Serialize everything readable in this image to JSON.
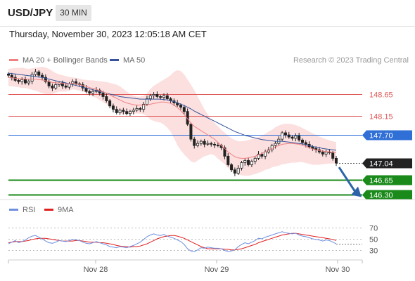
{
  "header": {
    "symbol": "USD/JPY",
    "timeframe": "30 MIN"
  },
  "datetime": "Thursday, November 30, 2023 12:05:18 AM CET",
  "legend": {
    "ma20": "MA 20 + Bollinger Bands",
    "ma50": "MA 50"
  },
  "copyright": "Research © 2023 Trading Central",
  "rsi_legend": {
    "rsi": "RSI",
    "ma9": "9MA"
  },
  "colors": {
    "ma20": "#f08080",
    "bollinger_fill": "#fbd4d4",
    "ma50": "#34539c",
    "support": "#1a8a1a",
    "pivot": "#2f6fd6",
    "resistance": "#e05858",
    "last": "#222222",
    "rsi": "#6f8fe0",
    "rsi_ma": "#e02020",
    "arrow": "#2d64a8"
  },
  "chart_data": [
    {
      "type": "candlestick",
      "pane": "price",
      "x_labels": [
        "Nov 28",
        "Nov 29",
        "Nov 30"
      ],
      "ylim": [
        146.2,
        149.3
      ],
      "levels": [
        {
          "value": 148.65,
          "label": "148.65",
          "kind": "resistance"
        },
        {
          "value": 148.15,
          "label": "148.15",
          "kind": "resistance"
        },
        {
          "value": 147.7,
          "label": "147.70",
          "kind": "pivot"
        },
        {
          "value": 147.04,
          "label": "147.04",
          "kind": "last"
        },
        {
          "value": 146.65,
          "label": "146.65",
          "kind": "support"
        },
        {
          "value": 146.3,
          "label": "146.30",
          "kind": "support"
        }
      ],
      "close": [
        149.1,
        149.05,
        148.98,
        148.95,
        149.0,
        148.92,
        148.96,
        149.12,
        149.18,
        149.1,
        149.05,
        148.95,
        148.85,
        148.8,
        148.88,
        148.92,
        148.85,
        148.82,
        148.9,
        148.95,
        148.9,
        148.88,
        148.8,
        148.72,
        148.68,
        148.72,
        148.75,
        148.68,
        148.6,
        148.5,
        148.38,
        148.3,
        148.22,
        148.28,
        148.25,
        148.2,
        148.25,
        148.28,
        148.32,
        148.3,
        148.42,
        148.55,
        148.62,
        148.65,
        148.6,
        148.58,
        148.62,
        148.55,
        148.5,
        148.45,
        148.4,
        148.35,
        148.25,
        147.95,
        147.6,
        147.45,
        147.5,
        147.55,
        147.48,
        147.5,
        147.48,
        147.46,
        147.45,
        147.4,
        147.2,
        147.0,
        146.88,
        146.8,
        146.92,
        147.05,
        147.1,
        147.0,
        147.08,
        147.15,
        147.25,
        147.2,
        147.3,
        147.35,
        147.45,
        147.5,
        147.6,
        147.75,
        147.7,
        147.65,
        147.62,
        147.68,
        147.58,
        147.52,
        147.48,
        147.42,
        147.38,
        147.35,
        147.3,
        147.25,
        147.3,
        147.28,
        147.15,
        147.04
      ],
      "ma20": [
        149.05,
        149.04,
        149.03,
        149.02,
        149.02,
        149.01,
        149.01,
        149.01,
        149.01,
        149.0,
        148.99,
        148.97,
        148.95,
        148.93,
        148.92,
        148.92,
        148.91,
        148.9,
        148.9,
        148.91,
        148.9,
        148.88,
        148.86,
        148.84,
        148.81,
        148.79,
        148.77,
        148.74,
        148.71,
        148.68,
        148.64,
        148.6,
        148.56,
        148.52,
        148.48,
        148.45,
        148.43,
        148.41,
        148.4,
        148.4,
        148.4,
        148.41,
        148.42,
        148.44,
        148.45,
        148.47,
        148.47,
        148.46,
        148.44,
        148.4,
        148.34,
        148.27,
        148.18,
        148.08,
        147.98,
        147.9,
        147.85,
        147.8,
        147.75,
        147.7,
        147.65,
        147.6,
        147.52,
        147.45,
        147.38,
        147.3,
        147.24,
        147.19,
        147.16,
        147.15,
        147.15,
        147.16,
        147.18,
        147.2,
        147.23,
        147.26,
        147.3,
        147.34,
        147.38,
        147.42,
        147.45,
        147.48,
        147.49,
        147.5,
        147.5,
        147.49,
        147.48,
        147.46,
        147.43,
        147.4,
        147.37,
        147.35,
        147.33,
        147.32,
        147.31,
        147.3,
        147.29,
        147.28
      ],
      "bollinger_upper": [
        149.25,
        149.26,
        149.27,
        149.27,
        149.28,
        149.26,
        149.25,
        149.26,
        149.28,
        149.29,
        149.3,
        149.28,
        149.25,
        149.2,
        149.15,
        149.12,
        149.1,
        149.08,
        149.06,
        149.05,
        149.04,
        149.02,
        149.0,
        148.99,
        148.98,
        148.98,
        148.97,
        148.96,
        148.95,
        148.94,
        148.92,
        148.9,
        148.88,
        148.84,
        148.78,
        148.72,
        148.66,
        148.62,
        148.6,
        148.6,
        148.62,
        148.68,
        148.78,
        148.85,
        148.9,
        148.95,
        149.0,
        149.05,
        149.1,
        149.18,
        149.22,
        149.2,
        149.12,
        149.0,
        148.88,
        148.75,
        148.6,
        148.45,
        148.3,
        148.18,
        148.05,
        147.98,
        147.9,
        147.82,
        147.75,
        147.68,
        147.62,
        147.58,
        147.55,
        147.55,
        147.56,
        147.58,
        147.6,
        147.62,
        147.65,
        147.68,
        147.72,
        147.78,
        147.82,
        147.88,
        147.92,
        147.95,
        147.96,
        147.96,
        147.95,
        147.93,
        147.9,
        147.86,
        147.82,
        147.78,
        147.74,
        147.7,
        147.66,
        147.63,
        147.6,
        147.57,
        147.55,
        147.53
      ],
      "bollinger_lower": [
        148.85,
        148.84,
        148.83,
        148.82,
        148.8,
        148.8,
        148.78,
        148.76,
        148.74,
        148.71,
        148.68,
        148.66,
        148.65,
        148.66,
        148.69,
        148.72,
        148.72,
        148.72,
        148.74,
        148.77,
        148.76,
        148.74,
        148.72,
        148.69,
        148.64,
        148.6,
        148.57,
        148.52,
        148.47,
        148.42,
        148.36,
        148.3,
        148.24,
        148.2,
        148.18,
        148.18,
        148.2,
        148.2,
        148.2,
        148.2,
        148.18,
        148.14,
        148.06,
        148.03,
        148.0,
        147.99,
        147.94,
        147.87,
        147.78,
        147.62,
        147.46,
        147.34,
        147.24,
        147.16,
        147.08,
        147.05,
        147.1,
        147.15,
        147.2,
        147.22,
        147.25,
        147.22,
        147.14,
        147.08,
        147.01,
        146.92,
        146.86,
        146.8,
        146.77,
        146.75,
        146.74,
        146.74,
        146.76,
        146.78,
        146.81,
        146.84,
        146.88,
        146.9,
        146.94,
        146.96,
        146.98,
        147.01,
        147.02,
        147.04,
        147.05,
        147.05,
        147.06,
        147.06,
        147.04,
        147.02,
        147.0,
        147.0,
        147.0,
        147.01,
        147.02,
        147.03,
        147.03,
        147.03
      ],
      "ma50": [
        149.15,
        149.14,
        149.13,
        149.12,
        149.11,
        149.1,
        149.09,
        149.08,
        149.07,
        149.06,
        149.05,
        149.03,
        149.01,
        148.99,
        148.97,
        148.95,
        148.94,
        148.92,
        148.9,
        148.88,
        148.86,
        148.84,
        148.82,
        148.8,
        148.78,
        148.76,
        148.74,
        148.72,
        148.7,
        148.68,
        148.66,
        148.64,
        148.62,
        148.6,
        148.59,
        148.58,
        148.57,
        148.56,
        148.55,
        148.54,
        148.54,
        148.54,
        148.54,
        148.54,
        148.54,
        148.54,
        148.53,
        148.52,
        148.5,
        148.48,
        148.45,
        148.42,
        148.39,
        148.35,
        148.31,
        148.26,
        148.22,
        148.18,
        148.14,
        148.1,
        148.06,
        148.02,
        147.98,
        147.94,
        147.9,
        147.86,
        147.82,
        147.78,
        147.75,
        147.72,
        147.69,
        147.67,
        147.65,
        147.63,
        147.61,
        147.59,
        147.58,
        147.57,
        147.56,
        147.55,
        147.55,
        147.55,
        147.54,
        147.53,
        147.52,
        147.51,
        147.5,
        147.49,
        147.47,
        147.45,
        147.43,
        147.41,
        147.4,
        147.38,
        147.37,
        147.36,
        147.35,
        147.34
      ]
    },
    {
      "type": "line",
      "pane": "rsi",
      "ylim": [
        22,
        78
      ],
      "y_ticks": [
        70,
        50,
        30
      ],
      "series": [
        {
          "name": "RSI",
          "values": [
            41,
            44,
            47,
            43,
            45,
            48,
            52,
            55,
            56,
            53,
            50,
            46,
            43,
            42,
            44,
            47,
            46,
            45,
            47,
            49,
            48,
            47,
            44,
            42,
            41,
            43,
            45,
            43,
            41,
            39,
            36,
            35,
            34,
            36,
            35,
            34,
            36,
            38,
            41,
            44,
            49,
            54,
            57,
            59,
            57,
            56,
            58,
            55,
            53,
            51,
            48,
            45,
            40,
            32,
            28,
            27,
            30,
            34,
            33,
            35,
            34,
            33,
            33,
            32,
            29,
            27,
            28,
            30,
            36,
            40,
            43,
            41,
            44,
            47,
            51,
            50,
            53,
            55,
            57,
            59,
            61,
            63,
            61,
            60,
            59,
            60,
            57,
            55,
            54,
            52,
            50,
            49,
            48,
            46,
            48,
            47,
            44,
            41
          ]
        },
        {
          "name": "9MA",
          "values": [
            43,
            44,
            45,
            45,
            45,
            46,
            47,
            49,
            50,
            51,
            51,
            51,
            50,
            49,
            48,
            47,
            46,
            46,
            46,
            46,
            47,
            47,
            46,
            45,
            44,
            44,
            44,
            43,
            43,
            42,
            41,
            40,
            38,
            37,
            36,
            36,
            35,
            36,
            36,
            37,
            39,
            41,
            44,
            47,
            50,
            52,
            54,
            55,
            56,
            56,
            55,
            53,
            51,
            48,
            45,
            42,
            39,
            36,
            34,
            32,
            32,
            32,
            32,
            32,
            31,
            31,
            30,
            30,
            31,
            32,
            34,
            36,
            38,
            40,
            43,
            45,
            47,
            49,
            51,
            53,
            55,
            57,
            58,
            59,
            60,
            60,
            59,
            58,
            57,
            56,
            55,
            54,
            53,
            52,
            51,
            50,
            49,
            47
          ]
        }
      ]
    }
  ]
}
